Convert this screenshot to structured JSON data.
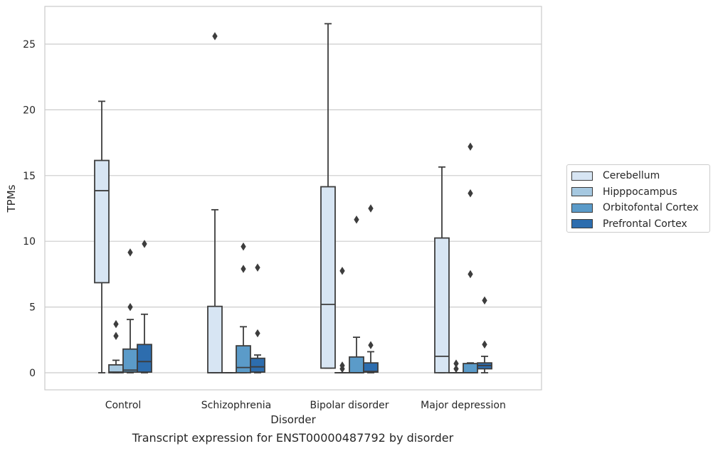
{
  "chart_data": {
    "type": "boxplot",
    "title": "",
    "caption": "Transcript expression for ENST00000487792 by disorder",
    "xlabel": "Disorder",
    "ylabel": "TPMs",
    "ylim": [
      -1.3,
      27.8
    ],
    "yticks": [
      0,
      5,
      10,
      15,
      20,
      25
    ],
    "grid": "horizontal",
    "legend_position": "right",
    "categories": [
      "Control",
      "Schizophrenia",
      "Bipolar disorder",
      "Major depression"
    ],
    "series": [
      {
        "name": "Cerebellum",
        "color": "#d7e5f3",
        "boxes": [
          {
            "category": "Control",
            "whisker_low": 0,
            "q1": 6.85,
            "median": 13.85,
            "q3": 16.15,
            "whisker_high": 20.65,
            "outliers": []
          },
          {
            "category": "Schizophrenia",
            "whisker_low": 0,
            "q1": 0,
            "median": 0,
            "q3": 5.05,
            "whisker_high": 12.4,
            "outliers": [
              25.6
            ]
          },
          {
            "category": "Bipolar disorder",
            "whisker_low": 0.35,
            "q1": 0.35,
            "median": 5.2,
            "q3": 14.15,
            "whisker_high": 26.55,
            "outliers": []
          },
          {
            "category": "Major depression",
            "whisker_low": 0,
            "q1": 0,
            "median": 1.25,
            "q3": 10.25,
            "whisker_high": 15.65,
            "outliers": []
          }
        ]
      },
      {
        "name": "Hipppocampus",
        "color": "#a6c8e0",
        "boxes": [
          {
            "category": "Control",
            "whisker_low": 0,
            "q1": 0,
            "median": 0.05,
            "q3": 0.6,
            "whisker_high": 0.95,
            "outliers": [
              2.8,
              3.7
            ]
          },
          {
            "category": "Schizophrenia",
            "whisker_low": 0,
            "q1": 0,
            "median": 0,
            "q3": 0,
            "whisker_high": 0,
            "outliers": []
          },
          {
            "category": "Bipolar disorder",
            "whisker_low": 0,
            "q1": 0,
            "median": 0,
            "q3": 0,
            "whisker_high": 0,
            "outliers": [
              0.3,
              0.55,
              7.75
            ]
          },
          {
            "category": "Major depression",
            "whisker_low": 0,
            "q1": 0,
            "median": 0,
            "q3": 0,
            "whisker_high": 0,
            "outliers": [
              0.3,
              0.7
            ]
          }
        ]
      },
      {
        "name": "Orbitofontal Cortex",
        "color": "#5b9bc9",
        "boxes": [
          {
            "category": "Control",
            "whisker_low": 0,
            "q1": 0.05,
            "median": 0.2,
            "q3": 1.8,
            "whisker_high": 4.05,
            "outliers": [
              5.0,
              9.15
            ]
          },
          {
            "category": "Schizophrenia",
            "whisker_low": 0,
            "q1": 0,
            "median": 0.4,
            "q3": 2.05,
            "whisker_high": 3.5,
            "outliers": [
              7.9,
              9.6
            ]
          },
          {
            "category": "Bipolar disorder",
            "whisker_low": 0,
            "q1": 0,
            "median": 0,
            "q3": 1.2,
            "whisker_high": 2.7,
            "outliers": [
              11.65
            ]
          },
          {
            "category": "Major depression",
            "whisker_low": 0,
            "q1": 0,
            "median": 0,
            "q3": 0.7,
            "whisker_high": 0.75,
            "outliers": [
              7.5,
              13.65,
              17.2
            ]
          }
        ]
      },
      {
        "name": "Prefrontal Cortex",
        "color": "#2d6dae",
        "boxes": [
          {
            "category": "Control",
            "whisker_low": 0,
            "q1": 0.05,
            "median": 0.85,
            "q3": 2.15,
            "whisker_high": 4.45,
            "outliers": [
              9.8
            ]
          },
          {
            "category": "Schizophrenia",
            "whisker_low": 0,
            "q1": 0.05,
            "median": 0.45,
            "q3": 1.1,
            "whisker_high": 1.35,
            "outliers": [
              3.0,
              8.0
            ]
          },
          {
            "category": "Bipolar disorder",
            "whisker_low": 0,
            "q1": 0.05,
            "median": 0.1,
            "q3": 0.75,
            "whisker_high": 1.6,
            "outliers": [
              2.1,
              12.5
            ]
          },
          {
            "category": "Major depression",
            "whisker_low": 0,
            "q1": 0.3,
            "median": 0.55,
            "q3": 0.75,
            "whisker_high": 1.25,
            "outliers": [
              2.15,
              5.5
            ]
          }
        ]
      }
    ]
  }
}
